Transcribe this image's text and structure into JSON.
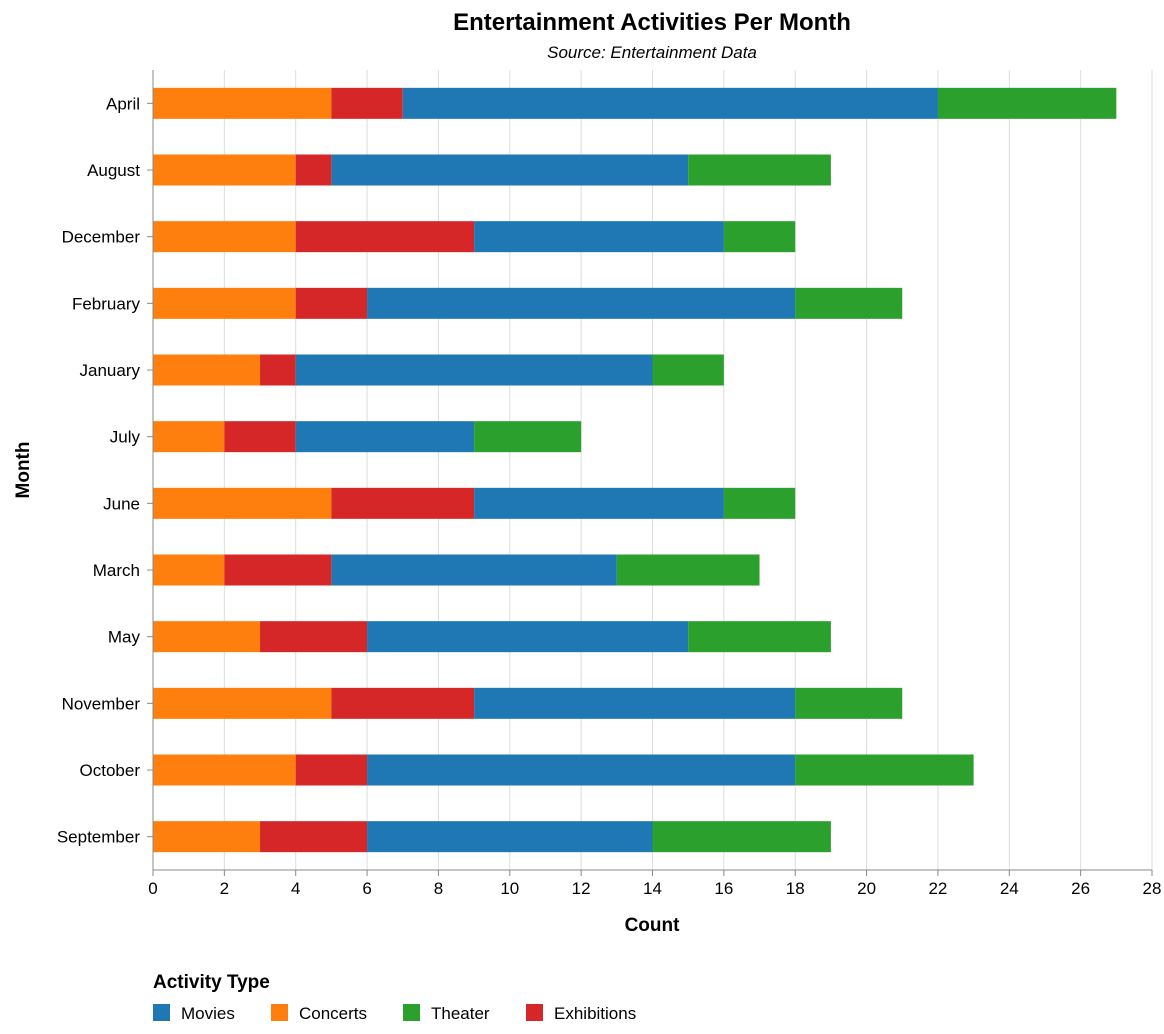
{
  "chart_data": {
    "type": "bar",
    "orientation": "horizontal",
    "stacked": true,
    "title": "Entertainment Activities Per Month",
    "subtitle": "Source: Entertainment Data",
    "xlabel": "Count",
    "ylabel": "Month",
    "xlim": [
      0,
      28
    ],
    "x_ticks": [
      0,
      2,
      4,
      6,
      8,
      10,
      12,
      14,
      16,
      18,
      20,
      22,
      24,
      26,
      28
    ],
    "grid": true,
    "legend_title": "Activity Type",
    "legend_position": "bottom-left",
    "legend_order": [
      "Movies",
      "Concerts",
      "Theater",
      "Exhibitions"
    ],
    "stack_order": [
      "Concerts",
      "Exhibitions",
      "Movies",
      "Theater"
    ],
    "categories": [
      "April",
      "August",
      "December",
      "February",
      "January",
      "July",
      "June",
      "March",
      "May",
      "November",
      "October",
      "September"
    ],
    "series": [
      {
        "name": "Concerts",
        "color": "#ff7f0e",
        "values": [
          5,
          4,
          4,
          4,
          3,
          2,
          5,
          2,
          3,
          5,
          4,
          3
        ]
      },
      {
        "name": "Exhibitions",
        "color": "#d62728",
        "values": [
          2,
          1,
          5,
          2,
          1,
          2,
          4,
          3,
          3,
          4,
          2,
          3
        ]
      },
      {
        "name": "Movies",
        "color": "#1f77b4",
        "values": [
          15,
          10,
          7,
          12,
          10,
          5,
          7,
          8,
          9,
          9,
          12,
          8
        ]
      },
      {
        "name": "Theater",
        "color": "#2ca02c",
        "values": [
          5,
          4,
          2,
          3,
          2,
          3,
          2,
          4,
          4,
          3,
          5,
          5
        ]
      }
    ]
  }
}
